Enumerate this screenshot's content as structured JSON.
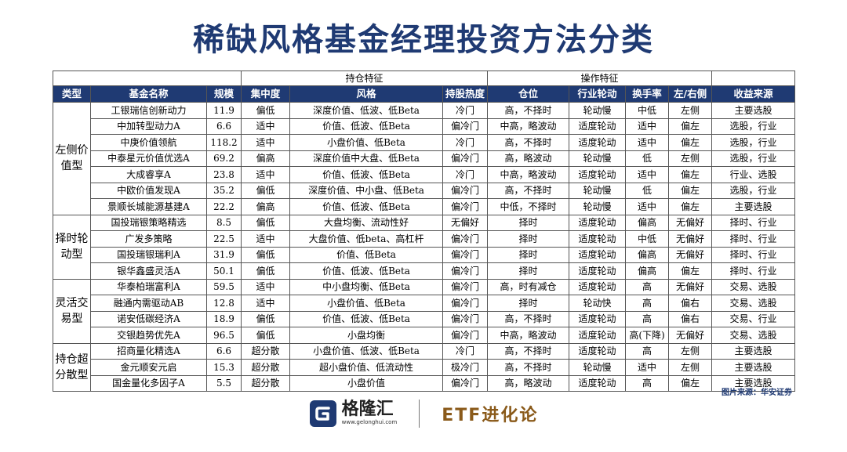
{
  "title": "稀缺风格基金经理投资方法分类",
  "group_headers": {
    "holdings": "持仓特征",
    "operations": "操作特征"
  },
  "columns": [
    "类型",
    "基金名称",
    "规模",
    "集中度",
    "风格",
    "持股热度",
    "仓位",
    "行业轮动",
    "换手率",
    "左/右侧",
    "收益来源"
  ],
  "groups": [
    {
      "type": "左侧价值型",
      "rows": [
        [
          "工银瑞信创新动力",
          "11.9",
          "偏低",
          "深度价值、低波、低Beta",
          "冷门",
          "高，不择时",
          "轮动慢",
          "中低",
          "左侧",
          "主要选股"
        ],
        [
          "中加转型动力A",
          "6.6",
          "适中",
          "价值、低波、低Beta",
          "偏冷门",
          "中高，略波动",
          "适度轮动",
          "适中",
          "偏左",
          "选股，行业"
        ],
        [
          "中庚价值领航",
          "118.2",
          "适中",
          "小盘价值、低Beta",
          "冷门",
          "高，不择时",
          "适度轮动",
          "适中",
          "偏左",
          "选股，行业"
        ],
        [
          "中泰星元价值优选A",
          "69.2",
          "偏高",
          "深度价值中大盘、低Beta",
          "偏冷门",
          "高，略波动",
          "轮动慢",
          "低",
          "左侧",
          "选股，行业"
        ],
        [
          "大成睿享A",
          "23.8",
          "适中",
          "价值、低波、低Beta",
          "冷门",
          "中高，略波动",
          "适度轮动",
          "适中",
          "偏左",
          "行业、选股"
        ],
        [
          "中欧价值发现A",
          "35.2",
          "偏低",
          "深度价值、中小盘、低Beta",
          "偏冷门",
          "高，不择时",
          "轮动慢",
          "低",
          "偏左",
          "选股，行业"
        ],
        [
          "景顺长城能源基建A",
          "22.2",
          "偏高",
          "价值、低波、低Beta",
          "偏冷门",
          "中低，不择时",
          "轮动慢",
          "适中",
          "偏左",
          "主要选股"
        ]
      ]
    },
    {
      "type": "择时轮动型",
      "rows": [
        [
          "国投瑞银策略精选",
          "8.5",
          "偏低",
          "大盘均衡、流动性好",
          "无偏好",
          "择时",
          "适度轮动",
          "偏高",
          "无偏好",
          "择时、行业"
        ],
        [
          "广发多策略",
          "22.5",
          "适中",
          "大盘价值、低beta、高杠杆",
          "偏冷门",
          "择时",
          "适度轮动",
          "中低",
          "无偏好",
          "择时、行业"
        ],
        [
          "国投瑞银瑞利A",
          "31.9",
          "偏低",
          "价值、低Beta",
          "偏冷门",
          "择时",
          "适度轮动",
          "偏高",
          "无偏好",
          "择时、行业"
        ],
        [
          "银华鑫盛灵活A",
          "50.1",
          "偏低",
          "价值、低波、低Beta",
          "偏冷门",
          "择时",
          "适度轮动",
          "偏高",
          "偏左",
          "择时、行业"
        ]
      ]
    },
    {
      "type": "灵活交易型",
      "rows": [
        [
          "华泰柏瑞富利A",
          "59.5",
          "适中",
          "中小盘均衡、低Beta",
          "偏冷门",
          "高，时有减仓",
          "适度轮动",
          "高",
          "无偏好",
          "交易、选股"
        ],
        [
          "融通内需驱动AB",
          "12.8",
          "适中",
          "小盘价值、低Beta",
          "偏冷门",
          "择时",
          "轮动快",
          "高",
          "偏右",
          "交易、选股"
        ],
        [
          "诺安低碳经济A",
          "18.9",
          "偏低",
          "价值、低波、低Beta",
          "偏冷门",
          "高，不择时",
          "适度轮动",
          "高",
          "偏右",
          "交易、行业"
        ],
        [
          "交银趋势优先A",
          "96.5",
          "偏低",
          "小盘均衡",
          "偏冷门",
          "中高，略波动",
          "适度轮动",
          "高(下降)",
          "无偏好",
          "交易、选股"
        ]
      ]
    },
    {
      "type": "持仓超分散型",
      "rows": [
        [
          "招商量化精选A",
          "6.6",
          "超分散",
          "小盘价值、低波、低Beta",
          "冷门",
          "高，不择时",
          "适度轮动",
          "高",
          "左侧",
          "主要选股"
        ],
        [
          "金元顺安元启",
          "15.3",
          "超分散",
          "超小盘价值、低流动性",
          "极冷门",
          "高，不择时",
          "轮动慢",
          "适中",
          "左侧",
          "主要选股"
        ],
        [
          "国金量化多因子A",
          "5.5",
          "超分散",
          "小盘价值",
          "偏冷门",
          "高，略波动",
          "适度轮动",
          "高",
          "偏左",
          "主要选股"
        ]
      ]
    }
  ],
  "source": "图片来源：华安证券",
  "footer": {
    "logo_name": "格隆汇",
    "logo_url": "www.gelonghui.com",
    "brand": "ETF进化论"
  },
  "colors": {
    "header_bg": "#1f3a73",
    "title": "#1f3a73",
    "brand": "#8a5a1a"
  }
}
